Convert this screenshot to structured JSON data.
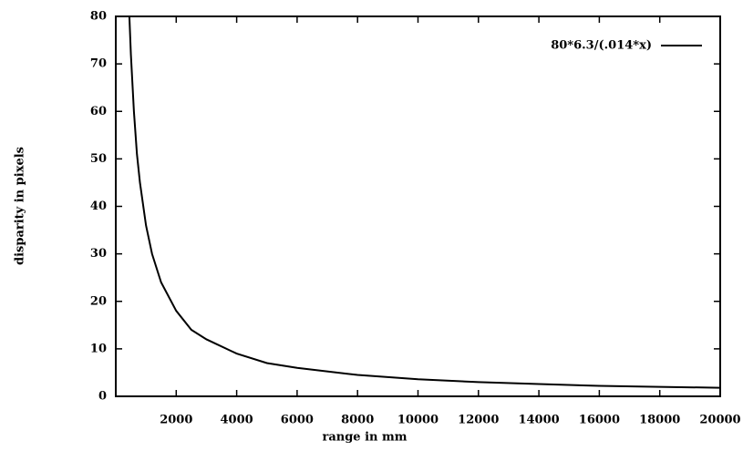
{
  "chart_data": {
    "type": "line",
    "xlabel": "range in mm",
    "ylabel": "disparity in pixels",
    "x": [
      450,
      500,
      600,
      700,
      800,
      1000,
      1200,
      1500,
      2000,
      2500,
      3000,
      4000,
      5000,
      6000,
      8000,
      10000,
      12000,
      14000,
      16000,
      18000,
      20000
    ],
    "series": [
      {
        "name": "80*6.3/(.014*x)",
        "color": "#000000",
        "values": [
          80,
          72,
          60,
          51,
          45,
          36,
          30,
          24,
          18,
          14,
          12,
          9,
          7,
          6,
          4.5,
          3.6,
          3,
          2.6,
          2.2,
          2,
          1.8
        ]
      }
    ],
    "xlim": [
      0,
      20000
    ],
    "xticks": [
      2000,
      4000,
      6000,
      8000,
      10000,
      12000,
      14000,
      16000,
      18000,
      20000
    ],
    "ylim": [
      0,
      80
    ],
    "yticks": [
      0,
      10,
      20,
      30,
      40,
      50,
      60,
      70,
      80
    ],
    "grid": false,
    "legend": "top-right"
  }
}
